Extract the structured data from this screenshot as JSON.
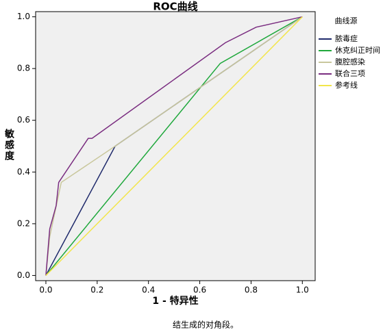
{
  "chart_data": {
    "type": "line",
    "title": "ROC曲线",
    "x_label": "1 - 特异性",
    "y_label": "敏感度",
    "legend_title": "曲线源",
    "legend": "right",
    "footnote": "结生成的对角段。",
    "xlim": [
      -0.04,
      1.05
    ],
    "ylim": [
      -0.02,
      1.02
    ],
    "xticks": [
      {
        "value": 0,
        "label": "0.0"
      },
      0.2,
      0.4,
      0.6,
      0.8,
      {
        "value": 1,
        "label": "1.0"
      }
    ],
    "yticks": [
      {
        "value": 0,
        "label": "0.0"
      },
      0.2,
      0.4,
      0.6,
      0.8,
      {
        "value": 1,
        "label": "1.0"
      }
    ],
    "series": [
      {
        "name": "脓毒症",
        "color": "#1f2a6b",
        "x": [
          0,
          0.27,
          1
        ],
        "values": [
          0,
          0.5,
          1
        ]
      },
      {
        "name": "休克纠正时间",
        "color": "#1fa83c",
        "x": [
          0,
          0.68,
          1
        ],
        "values": [
          0,
          0.82,
          1
        ]
      },
      {
        "name": "腹腔感染",
        "color": "#c9c79c",
        "x": [
          0,
          0.015,
          0.06,
          0.27,
          1
        ],
        "values": [
          0,
          0.15,
          0.36,
          0.5,
          1
        ]
      },
      {
        "name": "联合三项",
        "color": "#7a2d80",
        "x": [
          0,
          0.015,
          0.04,
          0.05,
          0.165,
          0.18,
          0.7,
          0.82,
          1
        ],
        "values": [
          0,
          0.18,
          0.27,
          0.36,
          0.53,
          0.53,
          0.9,
          0.96,
          1
        ]
      },
      {
        "name": "参考线",
        "color": "#f2e54a",
        "x": [
          0,
          1
        ],
        "values": [
          0,
          1
        ]
      }
    ]
  }
}
